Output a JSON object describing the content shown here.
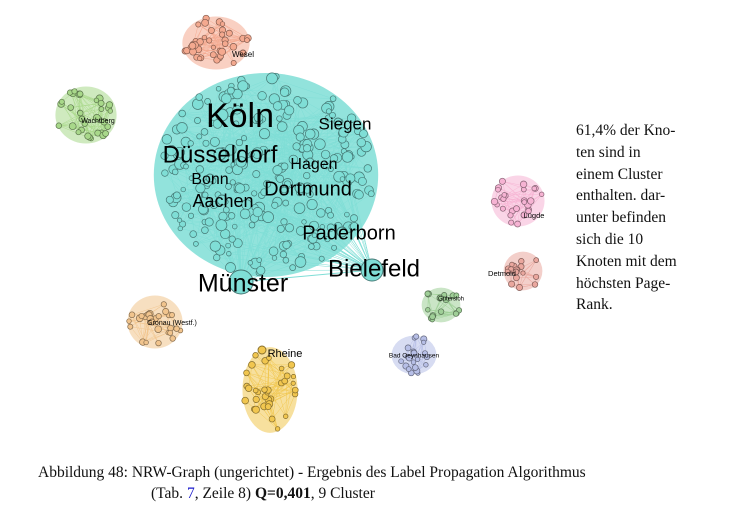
{
  "graph": {
    "clusters": [
      {
        "name": "main",
        "color": "#7fded6",
        "labels": [
          "Köln",
          "Siegen",
          "Düsseldorf",
          "Hagen",
          "Bonn",
          "Dortmund",
          "Aachen",
          "Paderborn",
          "Münster",
          "Bielefeld"
        ]
      },
      {
        "name": "wesel",
        "color": "#f4a98f",
        "labels": [
          "Wesel"
        ]
      },
      {
        "name": "wachtberg",
        "color": "#a8d88a",
        "labels": [
          "Wachtberg"
        ]
      },
      {
        "name": "luegde",
        "color": "#f6b3d3",
        "labels": [
          "Lügde"
        ]
      },
      {
        "name": "detmold",
        "color": "#eaa79e",
        "labels": [
          "Detmold"
        ]
      },
      {
        "name": "guetersloh",
        "color": "#9fcf97",
        "labels": [
          "Gütersloh"
        ]
      },
      {
        "name": "gronau",
        "color": "#f1c48d",
        "labels": [
          "Gronau (Westf.)"
        ]
      },
      {
        "name": "bad-oeynhausen",
        "color": "#b7bfe7",
        "labels": [
          "Bad Oeynhausen"
        ]
      },
      {
        "name": "rheine",
        "color": "#f1c64f",
        "labels": [
          "Rheine"
        ]
      }
    ]
  },
  "side_text": {
    "lines": [
      "61,4% der Kno-",
      "ten sind in",
      "einem Cluster",
      "enthalten. dar-",
      "unter befinden",
      "sich die 10",
      "Knoten mit dem",
      "höchsten Page-",
      "Rank."
    ]
  },
  "caption": {
    "prefix": "Abbildung 48: NRW-Graph (ungerichtet) - Ergebnis des Label Propagation Algorithmus",
    "open": "(Tab. ",
    "table_ref": "7",
    "mid": ", Zeile 8) ",
    "q_value": "Q=0,401",
    "suffix": ", 9 Cluster"
  }
}
